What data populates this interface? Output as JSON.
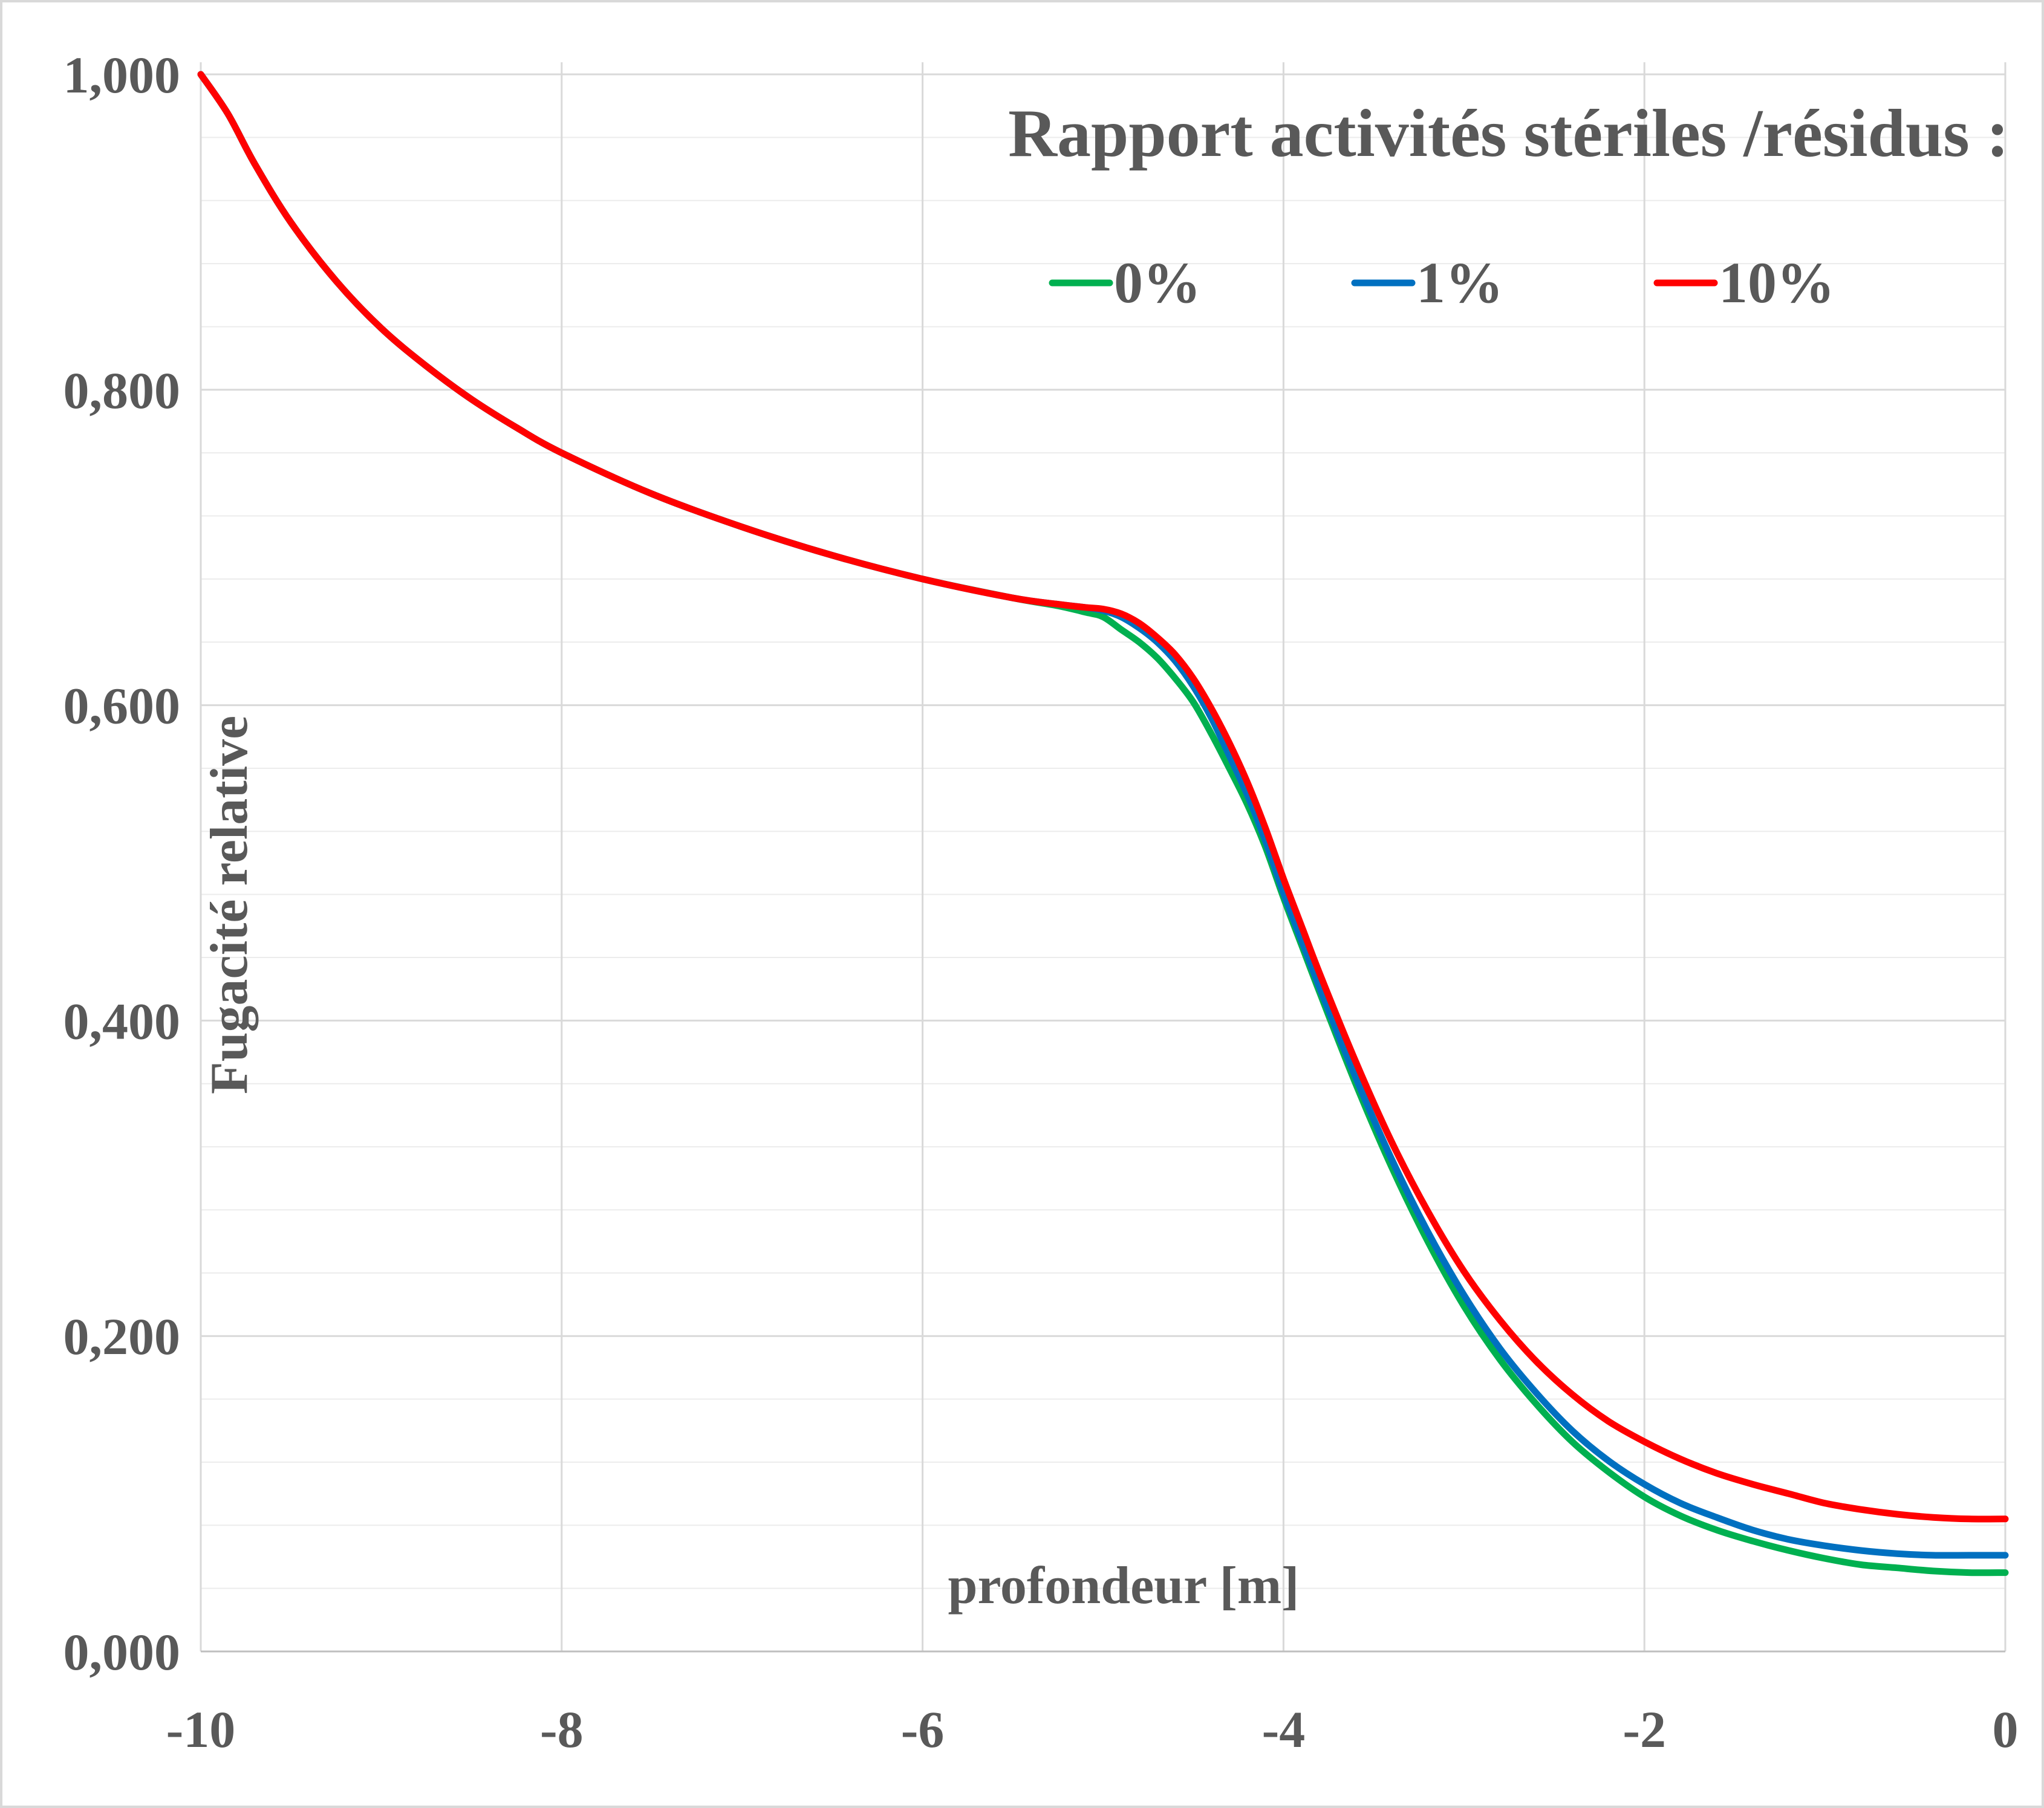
{
  "chart_data": {
    "type": "line",
    "title": "Rapport activités stériles /résidus :",
    "xlabel": "profondeur [m]",
    "ylabel": "Fugacité relative",
    "xlim": [
      -10,
      0
    ],
    "ylim": [
      0,
      1
    ],
    "x_ticks": [
      -10,
      -8,
      -6,
      -4,
      -2,
      0
    ],
    "x_tick_labels": [
      "-10",
      "-8",
      "-6",
      "-4",
      "-2",
      "0"
    ],
    "y_ticks": [
      0,
      0.2,
      0.4,
      0.6,
      0.8,
      1.0
    ],
    "y_tick_labels": [
      "0,000",
      "0,200",
      "0,400",
      "0,600",
      "0,800",
      "1,000"
    ],
    "minor_y_step": 0.04,
    "grid": true,
    "legend_position": "top-right",
    "series": [
      {
        "name": "0%",
        "color": "#00b050",
        "x": [
          -10,
          -9.85,
          -9.7,
          -9.5,
          -9.25,
          -9,
          -8.75,
          -8.5,
          -8.25,
          -8,
          -7.5,
          -7,
          -6.5,
          -6,
          -5.5,
          -5.25,
          -5.1,
          -5.0,
          -4.9,
          -4.8,
          -4.7,
          -4.6,
          -4.5,
          -4.4,
          -4.3,
          -4.2,
          -4.1,
          -4.0,
          -3.9,
          -3.8,
          -3.6,
          -3.4,
          -3.2,
          -3.0,
          -2.8,
          -2.6,
          -2.4,
          -2.2,
          -2.0,
          -1.8,
          -1.6,
          -1.4,
          -1.2,
          -1.0,
          -0.8,
          -0.6,
          -0.4,
          -0.2,
          0
        ],
        "y": [
          1.0,
          0.975,
          0.943,
          0.906,
          0.869,
          0.839,
          0.815,
          0.794,
          0.776,
          0.76,
          0.734,
          0.713,
          0.695,
          0.68,
          0.668,
          0.663,
          0.659,
          0.656,
          0.648,
          0.64,
          0.63,
          0.617,
          0.602,
          0.582,
          0.56,
          0.537,
          0.51,
          0.478,
          0.448,
          0.418,
          0.36,
          0.307,
          0.26,
          0.219,
          0.185,
          0.157,
          0.133,
          0.114,
          0.098,
          0.086,
          0.077,
          0.07,
          0.064,
          0.059,
          0.055,
          0.053,
          0.051,
          0.05,
          0.05
        ]
      },
      {
        "name": "1%",
        "color": "#0070c0",
        "x": [
          -10,
          -9.85,
          -9.7,
          -9.5,
          -9.25,
          -9,
          -8.75,
          -8.5,
          -8.25,
          -8,
          -7.5,
          -7,
          -6.5,
          -6,
          -5.5,
          -5.25,
          -5.1,
          -5.0,
          -4.9,
          -4.8,
          -4.7,
          -4.6,
          -4.5,
          -4.4,
          -4.3,
          -4.2,
          -4.1,
          -4.0,
          -3.9,
          -3.8,
          -3.6,
          -3.4,
          -3.2,
          -3.0,
          -2.8,
          -2.6,
          -2.4,
          -2.2,
          -2.0,
          -1.8,
          -1.6,
          -1.4,
          -1.2,
          -1.0,
          -0.8,
          -0.6,
          -0.4,
          -0.2,
          0
        ],
        "y": [
          1.0,
          0.975,
          0.943,
          0.906,
          0.869,
          0.839,
          0.815,
          0.794,
          0.776,
          0.76,
          0.734,
          0.713,
          0.695,
          0.68,
          0.668,
          0.664,
          0.662,
          0.66,
          0.656,
          0.649,
          0.64,
          0.628,
          0.612,
          0.592,
          0.568,
          0.543,
          0.514,
          0.481,
          0.451,
          0.421,
          0.364,
          0.312,
          0.266,
          0.226,
          0.192,
          0.164,
          0.14,
          0.121,
          0.106,
          0.094,
          0.085,
          0.077,
          0.071,
          0.067,
          0.064,
          0.062,
          0.061,
          0.061,
          0.061
        ]
      },
      {
        "name": "10%",
        "color": "#ff0000",
        "x": [
          -10,
          -9.85,
          -9.7,
          -9.5,
          -9.25,
          -9,
          -8.75,
          -8.5,
          -8.25,
          -8,
          -7.5,
          -7,
          -6.5,
          -6,
          -5.5,
          -5.25,
          -5.1,
          -5.0,
          -4.9,
          -4.8,
          -4.7,
          -4.6,
          -4.5,
          -4.4,
          -4.3,
          -4.2,
          -4.1,
          -4.0,
          -3.9,
          -3.8,
          -3.6,
          -3.4,
          -3.2,
          -3.0,
          -2.8,
          -2.6,
          -2.4,
          -2.2,
          -2.0,
          -1.8,
          -1.6,
          -1.4,
          -1.2,
          -1.0,
          -0.8,
          -0.6,
          -0.4,
          -0.2,
          0
        ],
        "y": [
          1.0,
          0.975,
          0.943,
          0.906,
          0.869,
          0.839,
          0.815,
          0.794,
          0.776,
          0.76,
          0.734,
          0.713,
          0.695,
          0.68,
          0.668,
          0.664,
          0.662,
          0.661,
          0.658,
          0.652,
          0.643,
          0.632,
          0.617,
          0.598,
          0.576,
          0.551,
          0.522,
          0.49,
          0.46,
          0.43,
          0.374,
          0.323,
          0.279,
          0.241,
          0.21,
          0.184,
          0.163,
          0.146,
          0.133,
          0.122,
          0.113,
          0.106,
          0.1,
          0.094,
          0.09,
          0.087,
          0.085,
          0.084,
          0.084
        ]
      }
    ]
  }
}
